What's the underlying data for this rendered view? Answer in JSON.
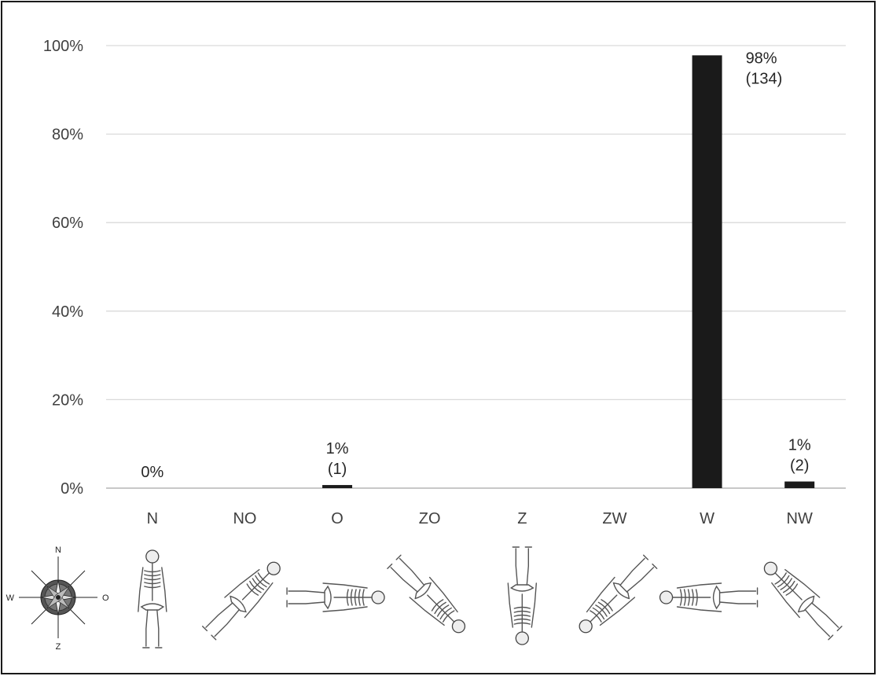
{
  "chart_data": {
    "type": "bar",
    "title": "",
    "xlabel": "",
    "ylabel": "",
    "categories": [
      "N",
      "NO",
      "O",
      "ZO",
      "Z",
      "ZW",
      "W",
      "NW"
    ],
    "values": [
      0,
      0,
      0.7,
      0,
      0,
      0,
      97.8,
      1.5
    ],
    "ylim": [
      0,
      100
    ],
    "yticks": [
      "0%",
      "20%",
      "40%",
      "60%",
      "80%",
      "100%"
    ],
    "ytick_values": [
      0,
      20,
      40,
      60,
      80,
      100
    ],
    "grid": true,
    "bar_color": "#1a1a1a",
    "data_labels": [
      {
        "category": "N",
        "lines": [
          "0%"
        ]
      },
      {
        "category": "O",
        "lines": [
          "1%",
          "(1)"
        ]
      },
      {
        "category": "W",
        "lines": [
          "98%",
          "(134)"
        ]
      },
      {
        "category": "NW",
        "lines": [
          "1%",
          "(2)"
        ]
      }
    ]
  },
  "compass": {
    "north": "N",
    "south": "Z",
    "west": "W",
    "east": "O"
  },
  "skeleton_icons": [
    "skeleton-N-icon",
    "skeleton-NO-icon",
    "skeleton-O-icon",
    "skeleton-ZO-icon",
    "skeleton-Z-icon",
    "skeleton-ZW-icon",
    "skeleton-W-icon",
    "skeleton-NW-icon"
  ]
}
